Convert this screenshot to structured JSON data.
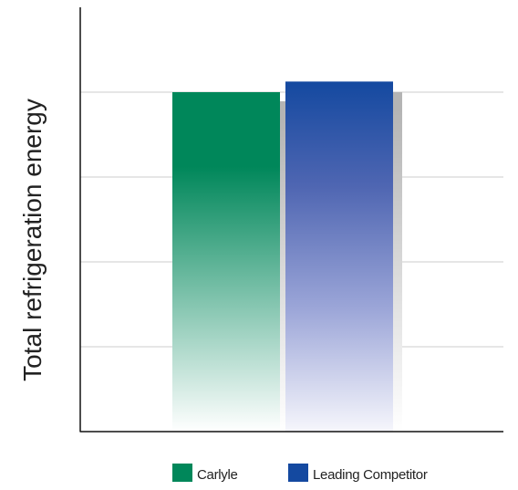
{
  "chart_data": {
    "type": "bar",
    "ylabel": "Total refrigeration energy",
    "xlabel": "",
    "ylim": [
      0,
      100
    ],
    "grid": true,
    "y_ticks_labeled": false,
    "legend_position": "bottom-center",
    "series": [
      {
        "name": "Carlyle",
        "value": 80,
        "color": "#00875a"
      },
      {
        "name": "Leading Competitor",
        "value": 82.5,
        "color": "#1449a0"
      }
    ]
  }
}
